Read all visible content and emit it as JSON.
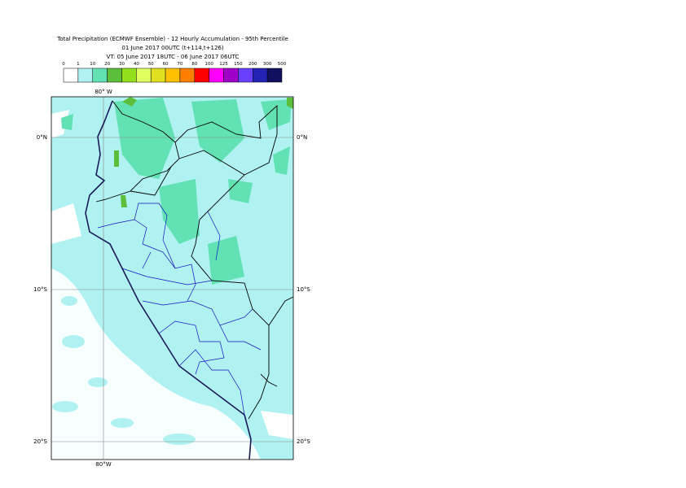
{
  "header": {
    "title": "Total Precipitation (ECMWF Ensemble) - 12 Hourly Accumulation - 95th Percentile",
    "run": "01 June 2017 00UTC (t+114,t+126)",
    "valid": "VT: 05 June 2017 18UTC - 06 June 2017 06UTC"
  },
  "legend": {
    "labels": [
      "0",
      "1",
      "10",
      "20",
      "30",
      "40",
      "50",
      "60",
      "70",
      "80",
      "100",
      "125",
      "150",
      "200",
      "300",
      "500"
    ],
    "colors": [
      "#ffffff",
      "#b0f2f2",
      "#62e2b4",
      "#5cbf3c",
      "#92e01c",
      "#e2ff62",
      "#e0e020",
      "#ffc000",
      "#ff8000",
      "#ff0000",
      "#ff00ff",
      "#a000c8",
      "#6a40ff",
      "#2222b4",
      "#10105e"
    ]
  },
  "map": {
    "lon_top": "80° W",
    "lon_bottom": "80°W",
    "lat_labels": [
      "0°N",
      "10°S",
      "20°S"
    ]
  }
}
